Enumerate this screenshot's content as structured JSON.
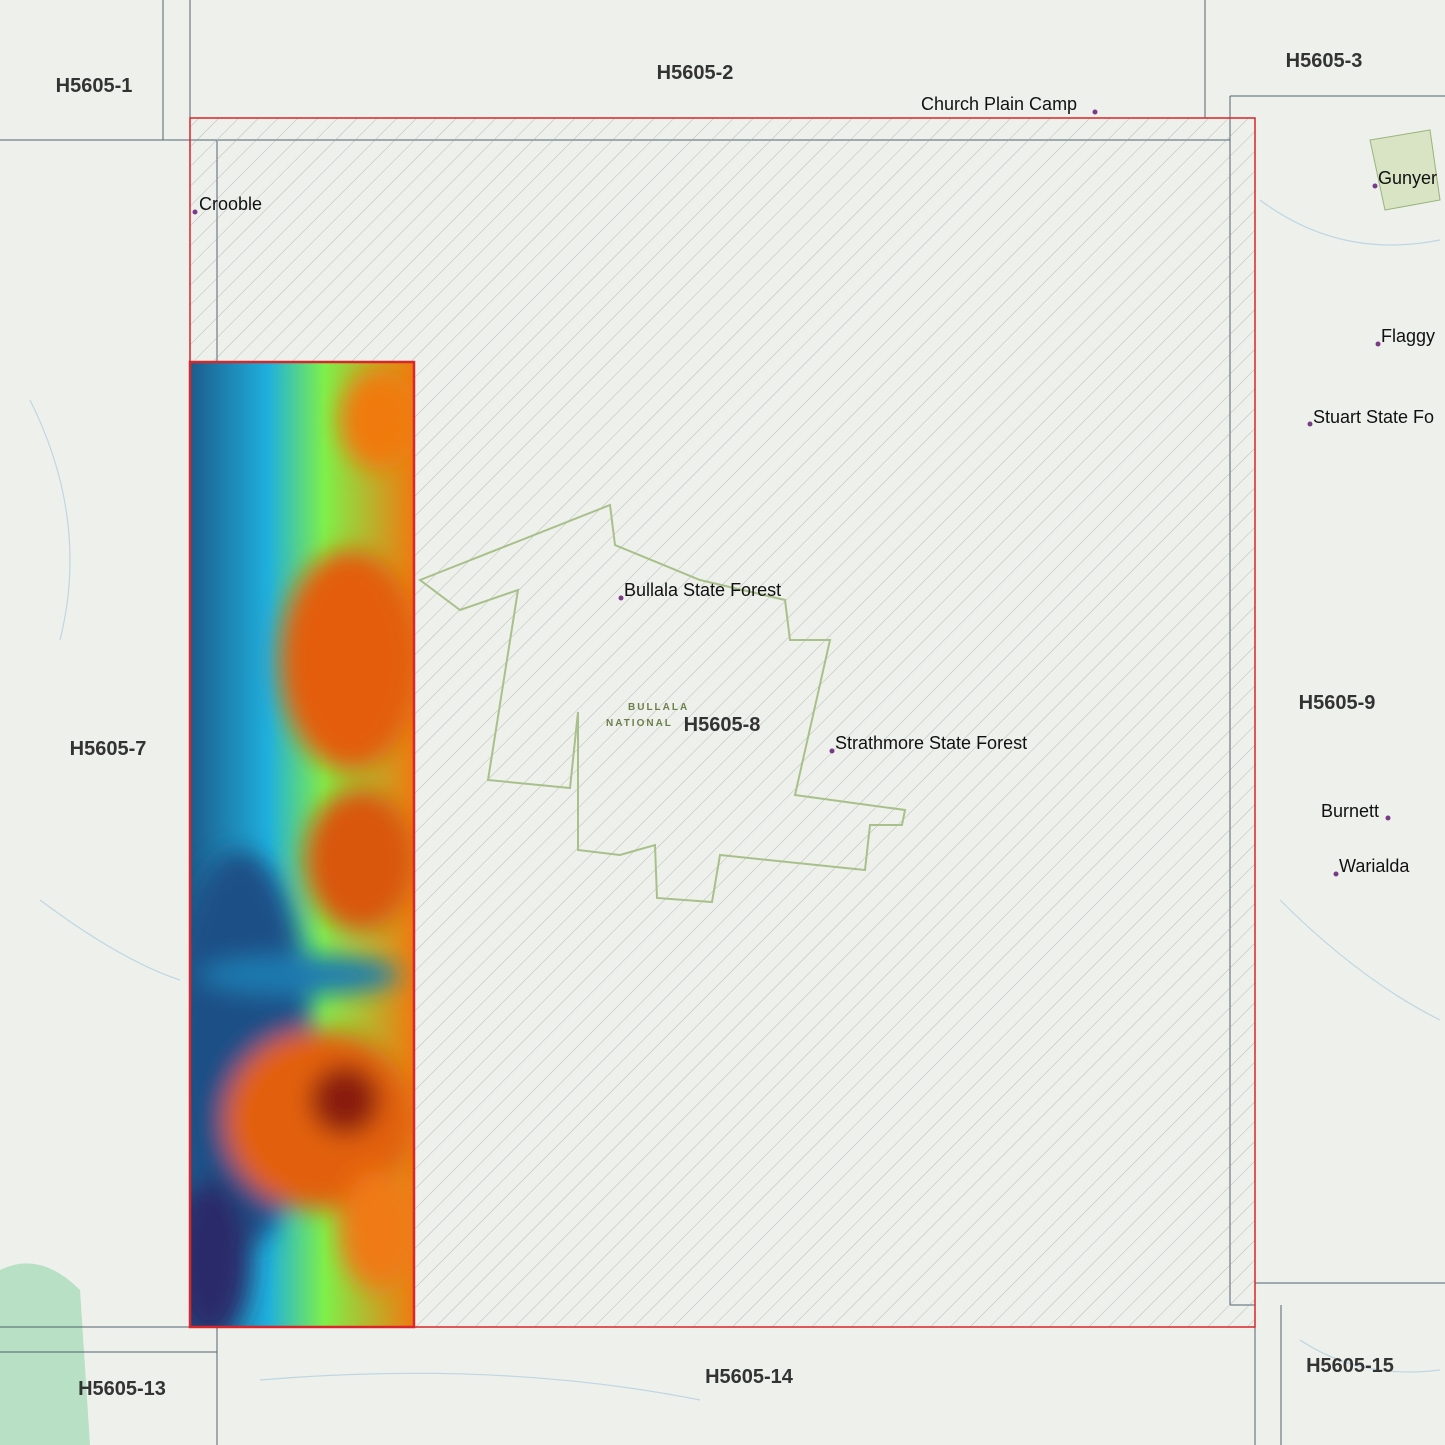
{
  "tiles": {
    "t1": "H5605-1",
    "t2": "H5605-2",
    "t3": "H5605-3",
    "t7": "H5605-7",
    "t8": "H5605-8",
    "t9": "H5605-9",
    "t13": "H5605-13",
    "t14": "H5605-14",
    "t15": "H5605-15"
  },
  "places": {
    "church": "Church Plain Camp",
    "crooble": "Crooble",
    "gunyer": "Gunyer",
    "flaggy": "Flaggy",
    "stuart": "Stuart State Fo",
    "bullala": "Bullala State Forest",
    "strathmore": "Strathmore State Forest",
    "burnett": "Burnett",
    "warialda": "Warialda"
  },
  "park": {
    "line1": "BULLALA",
    "line2": "NATIONAL"
  }
}
